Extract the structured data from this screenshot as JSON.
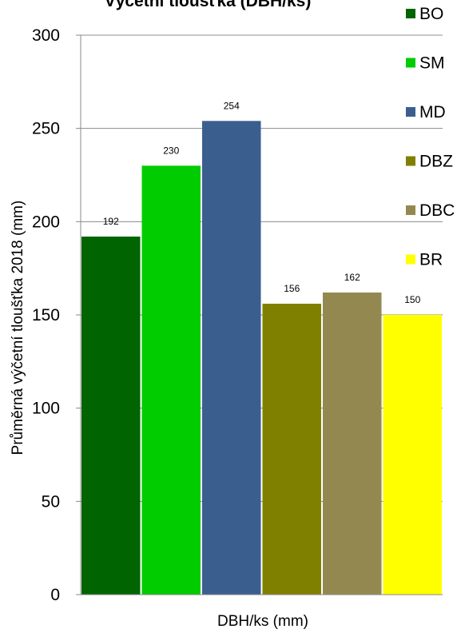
{
  "chart_data": {
    "type": "bar",
    "title": "Výčetní tloušťka (DBH/ks)",
    "xlabel": "DBH/ks (mm)",
    "ylabel": "Průměrná  výčetní tloušťka 2018 (mm)",
    "ylim": [
      0,
      300
    ],
    "yticks": [
      0,
      50,
      100,
      150,
      200,
      250,
      300
    ],
    "grid": true,
    "legend_position": "right",
    "series": [
      {
        "name": "BO",
        "value": 192,
        "label": "192",
        "color": "#006400"
      },
      {
        "name": "SM",
        "value": 230,
        "label": "230",
        "color": "#00CC00"
      },
      {
        "name": "MD",
        "value": 254,
        "label": "254",
        "color": "#3A5F8F"
      },
      {
        "name": "DBZ",
        "value": 156,
        "label": "156",
        "color": "#808000"
      },
      {
        "name": "DBC",
        "value": 162,
        "label": "162",
        "color": "#938950"
      },
      {
        "name": "BR",
        "value": 150,
        "label": "150",
        "color": "#FFFF00"
      }
    ]
  }
}
